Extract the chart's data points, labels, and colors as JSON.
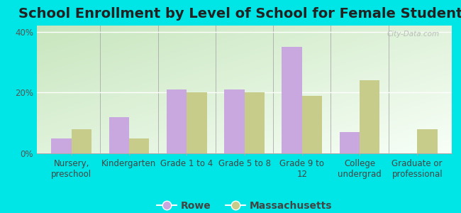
{
  "title": "School Enrollment by Level of School for Female Students",
  "categories": [
    "Nursery,\npreschool",
    "Kindergarten",
    "Grade 1 to 4",
    "Grade 5 to 8",
    "Grade 9 to\n12",
    "College\nundergrad",
    "Graduate or\nprofessional"
  ],
  "rowe_values": [
    5,
    12,
    21,
    21,
    35,
    7,
    0
  ],
  "mass_values": [
    8,
    5,
    20,
    20,
    19,
    24,
    8
  ],
  "rowe_color": "#c9a8e0",
  "mass_color": "#c8cc8a",
  "bar_width": 0.35,
  "ylim": [
    0,
    42
  ],
  "yticks": [
    0,
    20,
    40
  ],
  "ytick_labels": [
    "0%",
    "20%",
    "40%"
  ],
  "legend_labels": [
    "Rowe",
    "Massachusetts"
  ],
  "bg_outer": "#00e5e5",
  "bg_grad_top_left": "#c8e6c0",
  "bg_grad_bottom_right": "#f8fff8",
  "title_fontsize": 14,
  "axis_fontsize": 8.5,
  "legend_fontsize": 10,
  "watermark": "City-Data.com"
}
